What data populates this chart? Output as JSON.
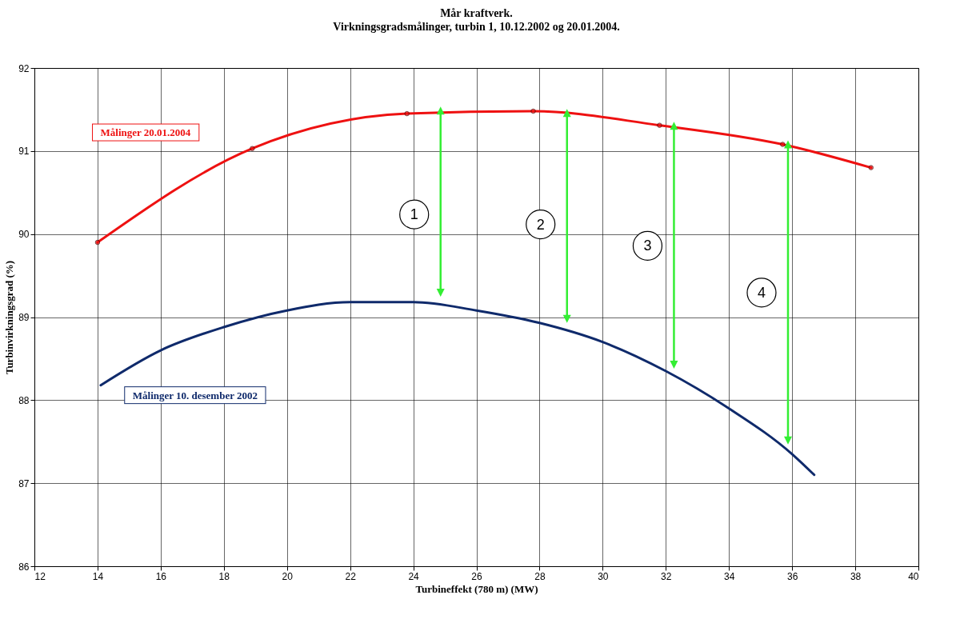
{
  "chart_data": {
    "type": "line",
    "title": "Mår kraftverk.",
    "subtitle": "Virkningsgradsmålinger, turbin 1, 10.12.2002 og 20.01.2004.",
    "xlabel": "Turbineffekt (780 m) (MW)",
    "ylabel": "Turbinvirkningsgrad (%)",
    "xlim": [
      12,
      40
    ],
    "xticks": [
      12,
      14,
      16,
      18,
      20,
      22,
      24,
      26,
      28,
      30,
      32,
      34,
      36,
      38,
      40
    ],
    "ylim": [
      86,
      92
    ],
    "yticks": [
      86,
      87,
      88,
      89,
      90,
      91,
      92
    ],
    "grid": true,
    "series": [
      {
        "name": "Målinger 20.01.2004",
        "color": "#ee1111",
        "marker": "circle",
        "x": [
          14,
          18.9,
          23.8,
          27.8,
          31.8,
          35.7,
          38.5
        ],
        "values": [
          89.9,
          91.03,
          91.45,
          91.48,
          91.31,
          91.08,
          90.8
        ]
      },
      {
        "name": "Målinger 10. desember 2002",
        "color": "#0f2a6b",
        "x": [
          14.1,
          16,
          18,
          20,
          22,
          24,
          26,
          28,
          30,
          32,
          34,
          36,
          36.7
        ],
        "values": [
          88.18,
          88.6,
          88.88,
          89.08,
          89.18,
          89.18,
          89.08,
          88.93,
          88.7,
          88.35,
          87.9,
          87.35,
          87.1
        ]
      }
    ],
    "annotations": [
      "1",
      "2",
      "3",
      "4"
    ]
  }
}
